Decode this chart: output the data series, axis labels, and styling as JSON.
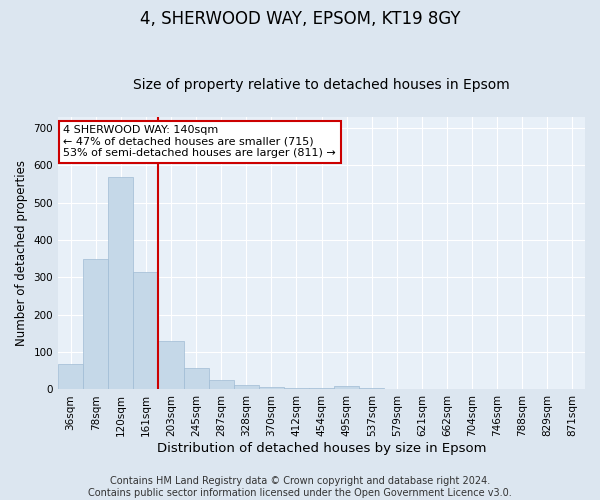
{
  "title": "4, SHERWOOD WAY, EPSOM, KT19 8GY",
  "subtitle": "Size of property relative to detached houses in Epsom",
  "xlabel": "Distribution of detached houses by size in Epsom",
  "ylabel": "Number of detached properties",
  "categories": [
    "36sqm",
    "78sqm",
    "120sqm",
    "161sqm",
    "203sqm",
    "245sqm",
    "287sqm",
    "328sqm",
    "370sqm",
    "412sqm",
    "454sqm",
    "495sqm",
    "537sqm",
    "579sqm",
    "621sqm",
    "662sqm",
    "704sqm",
    "746sqm",
    "788sqm",
    "829sqm",
    "871sqm"
  ],
  "values": [
    68,
    350,
    568,
    315,
    130,
    57,
    25,
    13,
    7,
    5,
    5,
    10,
    5,
    2,
    0,
    0,
    0,
    0,
    0,
    0,
    0
  ],
  "bar_color": "#c5d8e8",
  "bar_edge_color": "#a0bcd4",
  "bar_width": 1.0,
  "vline_x": 3.5,
  "vline_color": "#cc0000",
  "annotation_text": "4 SHERWOOD WAY: 140sqm\n← 47% of detached houses are smaller (715)\n53% of semi-detached houses are larger (811) →",
  "annotation_box_color": "white",
  "annotation_box_edge": "#cc0000",
  "ylim": [
    0,
    730
  ],
  "yticks": [
    0,
    100,
    200,
    300,
    400,
    500,
    600,
    700
  ],
  "bg_color": "#dce6f0",
  "plot_bg_color": "#e8f0f8",
  "footer": "Contains HM Land Registry data © Crown copyright and database right 2024.\nContains public sector information licensed under the Open Government Licence v3.0.",
  "title_fontsize": 12,
  "subtitle_fontsize": 10,
  "xlabel_fontsize": 9.5,
  "ylabel_fontsize": 8.5,
  "tick_fontsize": 7.5,
  "footer_fontsize": 7,
  "annot_fontsize": 8
}
